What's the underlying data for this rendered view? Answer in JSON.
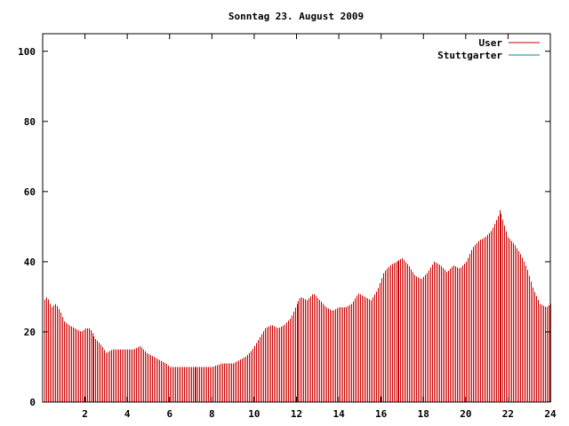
{
  "chart_data": {
    "type": "bar",
    "title": "Sonntag 23. August 2009",
    "xlabel": "",
    "ylabel": "",
    "xlim": [
      0,
      24
    ],
    "ylim": [
      0,
      105
    ],
    "x_ticks": [
      "2",
      "4",
      "6",
      "8",
      "10",
      "12",
      "14",
      "16",
      "18",
      "20",
      "22",
      "24"
    ],
    "y_ticks": [
      "0",
      "20",
      "40",
      "60",
      "80",
      "100"
    ],
    "grid": false,
    "legend_position": "top-right",
    "colors": {
      "User": "#cc0000",
      "Stuttgarter": "#008b8b",
      "axis": "#000000"
    },
    "series": [
      {
        "name": "User",
        "keypoints": [
          [
            0.05,
            29
          ],
          [
            0.2,
            30
          ],
          [
            0.4,
            27
          ],
          [
            0.6,
            28
          ],
          [
            0.8,
            26
          ],
          [
            1.0,
            23
          ],
          [
            1.2,
            22
          ],
          [
            1.5,
            21
          ],
          [
            1.8,
            20
          ],
          [
            2.0,
            21
          ],
          [
            2.2,
            21
          ],
          [
            2.5,
            18
          ],
          [
            2.8,
            16
          ],
          [
            3.0,
            14
          ],
          [
            3.3,
            15
          ],
          [
            3.6,
            15
          ],
          [
            4.0,
            15
          ],
          [
            4.3,
            15
          ],
          [
            4.6,
            16
          ],
          [
            4.9,
            14
          ],
          [
            5.2,
            13
          ],
          [
            5.5,
            12
          ],
          [
            5.8,
            11
          ],
          [
            6.0,
            10
          ],
          [
            6.5,
            10
          ],
          [
            7.0,
            10
          ],
          [
            7.5,
            10
          ],
          [
            8.0,
            10
          ],
          [
            8.5,
            11
          ],
          [
            9.0,
            11
          ],
          [
            9.3,
            12
          ],
          [
            9.6,
            13
          ],
          [
            9.9,
            15
          ],
          [
            10.2,
            18
          ],
          [
            10.5,
            21
          ],
          [
            10.8,
            22
          ],
          [
            11.1,
            21
          ],
          [
            11.4,
            22
          ],
          [
            11.7,
            24
          ],
          [
            12.0,
            28
          ],
          [
            12.2,
            30
          ],
          [
            12.5,
            29
          ],
          [
            12.8,
            31
          ],
          [
            13.1,
            29
          ],
          [
            13.4,
            27
          ],
          [
            13.7,
            26
          ],
          [
            14.0,
            27
          ],
          [
            14.3,
            27
          ],
          [
            14.6,
            28
          ],
          [
            14.9,
            31
          ],
          [
            15.2,
            30
          ],
          [
            15.5,
            29
          ],
          [
            15.8,
            32
          ],
          [
            16.1,
            37
          ],
          [
            16.4,
            39
          ],
          [
            16.7,
            40
          ],
          [
            17.0,
            41
          ],
          [
            17.3,
            39
          ],
          [
            17.6,
            36
          ],
          [
            17.9,
            35
          ],
          [
            18.2,
            37
          ],
          [
            18.5,
            40
          ],
          [
            18.8,
            39
          ],
          [
            19.1,
            37
          ],
          [
            19.4,
            39
          ],
          [
            19.7,
            38
          ],
          [
            20.0,
            40
          ],
          [
            20.3,
            44
          ],
          [
            20.6,
            46
          ],
          [
            20.9,
            47
          ],
          [
            21.2,
            49
          ],
          [
            21.5,
            53
          ],
          [
            21.6,
            55
          ],
          [
            21.8,
            51
          ],
          [
            22.0,
            47
          ],
          [
            22.3,
            45
          ],
          [
            22.6,
            42
          ],
          [
            22.9,
            38
          ],
          [
            23.2,
            32
          ],
          [
            23.5,
            28
          ],
          [
            23.8,
            27
          ],
          [
            24.0,
            28
          ]
        ]
      },
      {
        "name": "Stuttgarter",
        "keypoints": []
      }
    ]
  }
}
